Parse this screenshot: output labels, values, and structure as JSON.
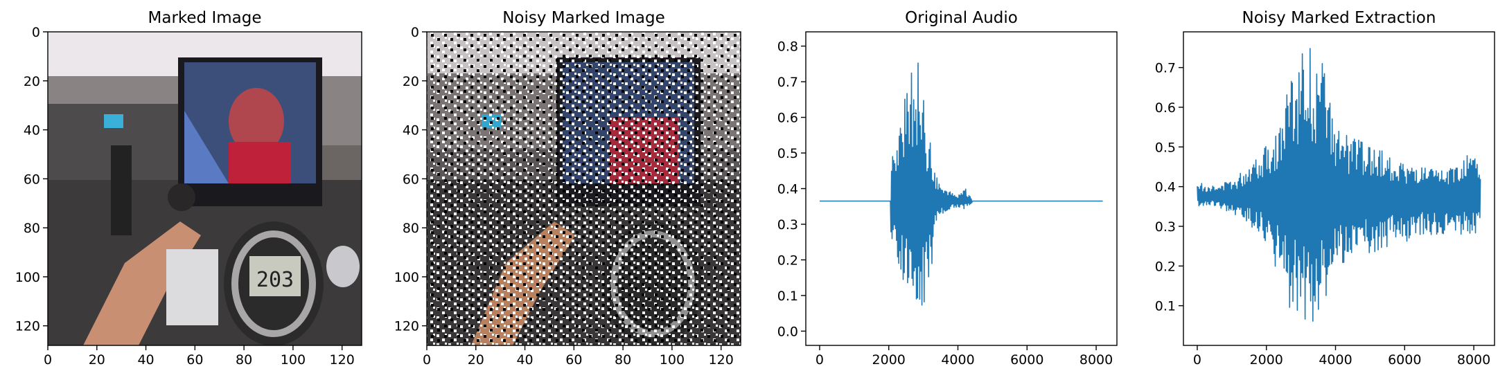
{
  "figure": {
    "background": "#ffffff"
  },
  "chart_data": [
    {
      "type": "image",
      "title": "Marked Image",
      "xlim": [
        0,
        128
      ],
      "ylim": [
        128,
        0
      ],
      "xticks": [
        "0",
        "20",
        "40",
        "60",
        "80",
        "100",
        "120"
      ],
      "yticks": [
        "0",
        "20",
        "40",
        "60",
        "80",
        "100",
        "120"
      ],
      "content": "photo",
      "display": "203"
    },
    {
      "type": "image",
      "title": "Noisy Marked Image",
      "xlim": [
        0,
        128
      ],
      "ylim": [
        128,
        0
      ],
      "xticks": [
        "0",
        "20",
        "40",
        "60",
        "80",
        "100",
        "120"
      ],
      "yticks": [
        "0",
        "20",
        "40",
        "60",
        "80",
        "100",
        "120"
      ],
      "content": "photo with salt-and-pepper noise"
    },
    {
      "type": "line",
      "title": "Original Audio",
      "xlim": [
        -400,
        8600
      ],
      "ylim": [
        -0.04,
        0.84
      ],
      "xticks": [
        "0",
        "2000",
        "4000",
        "6000",
        "8000"
      ],
      "yticks": [
        "0.0",
        "0.1",
        "0.2",
        "0.3",
        "0.4",
        "0.5",
        "0.6",
        "0.7",
        "0.8"
      ],
      "color": "#1f77b4",
      "baseline": 0.365,
      "x_range": [
        0,
        8192
      ],
      "envelope": [
        {
          "x": 2050,
          "max": 0.54,
          "min": 0.25
        },
        {
          "x": 2200,
          "max": 0.5,
          "min": 0.2
        },
        {
          "x": 2400,
          "max": 0.63,
          "min": 0.15
        },
        {
          "x": 2600,
          "max": 0.7,
          "min": 0.07
        },
        {
          "x": 2800,
          "max": 0.8,
          "min": 0.0
        },
        {
          "x": 3000,
          "max": 0.67,
          "min": 0.03
        },
        {
          "x": 3200,
          "max": 0.53,
          "min": 0.15
        },
        {
          "x": 3400,
          "max": 0.43,
          "min": 0.3
        },
        {
          "x": 3600,
          "max": 0.4,
          "min": 0.33
        },
        {
          "x": 4000,
          "max": 0.38,
          "min": 0.35
        },
        {
          "x": 4150,
          "max": 0.41,
          "min": 0.34
        },
        {
          "x": 4400,
          "max": 0.375,
          "min": 0.36
        }
      ]
    },
    {
      "type": "line",
      "title": "Noisy Marked Extraction",
      "xlim": [
        -400,
        8600
      ],
      "ylim": [
        0.0,
        0.79
      ],
      "xticks": [
        "0",
        "2000",
        "4000",
        "6000",
        "8000"
      ],
      "yticks": [
        "0.1",
        "0.2",
        "0.3",
        "0.4",
        "0.5",
        "0.6",
        "0.7"
      ],
      "color": "#1f77b4",
      "baseline": 0.375,
      "x_range": [
        0,
        8192
      ],
      "envelope": [
        {
          "x": 0,
          "max": 0.41,
          "min": 0.35
        },
        {
          "x": 600,
          "max": 0.4,
          "min": 0.35
        },
        {
          "x": 1200,
          "max": 0.43,
          "min": 0.32
        },
        {
          "x": 1800,
          "max": 0.5,
          "min": 0.28
        },
        {
          "x": 2400,
          "max": 0.56,
          "min": 0.17
        },
        {
          "x": 2600,
          "max": 0.66,
          "min": 0.1
        },
        {
          "x": 3000,
          "max": 0.73,
          "min": 0.07
        },
        {
          "x": 3200,
          "max": 0.76,
          "min": 0.04
        },
        {
          "x": 3600,
          "max": 0.72,
          "min": 0.08
        },
        {
          "x": 4000,
          "max": 0.55,
          "min": 0.2
        },
        {
          "x": 4600,
          "max": 0.52,
          "min": 0.22
        },
        {
          "x": 5200,
          "max": 0.5,
          "min": 0.23
        },
        {
          "x": 6000,
          "max": 0.46,
          "min": 0.26
        },
        {
          "x": 7000,
          "max": 0.44,
          "min": 0.28
        },
        {
          "x": 7600,
          "max": 0.46,
          "min": 0.28
        },
        {
          "x": 8000,
          "max": 0.53,
          "min": 0.27
        },
        {
          "x": 8192,
          "max": 0.43,
          "min": 0.29
        }
      ]
    }
  ]
}
